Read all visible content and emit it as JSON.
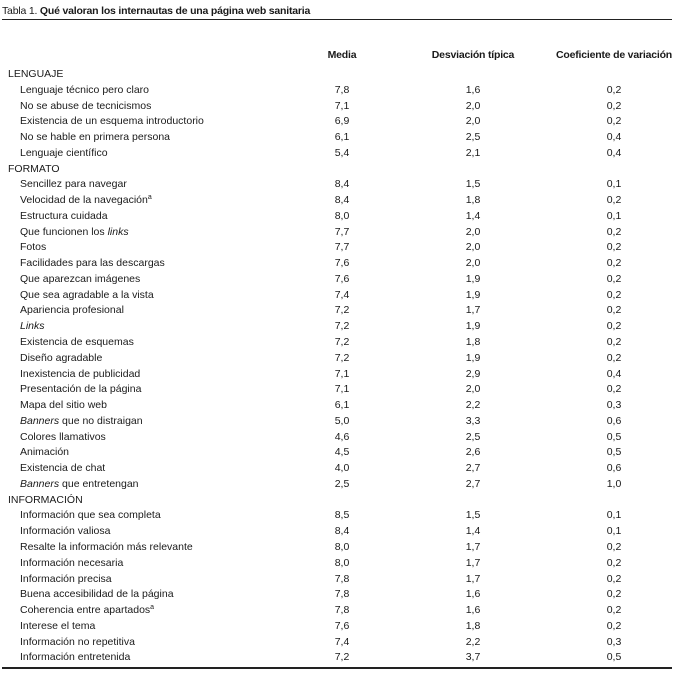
{
  "title": {
    "prefix": "Tabla 1.",
    "text": "Qué valoran los internautas de una página web sanitaria"
  },
  "columns": [
    "Media",
    "Desviación típica",
    "Coeficiente de variación"
  ],
  "sections": [
    {
      "name": "LENGUAJE",
      "rows": [
        {
          "label": "Lenguaje técnico pero claro",
          "values": [
            "7,8",
            "1,6",
            "0,2"
          ]
        },
        {
          "label": "No se abuse de tecnicismos",
          "values": [
            "7,1",
            "2,0",
            "0,2"
          ]
        },
        {
          "label": "Existencia de un esquema introductorio",
          "values": [
            "6,9",
            "2,0",
            "0,2"
          ]
        },
        {
          "label": "No se hable en primera persona",
          "values": [
            "6,1",
            "2,5",
            "0,4"
          ]
        },
        {
          "label": "Lenguaje científico",
          "values": [
            "5,4",
            "2,1",
            "0,4"
          ]
        }
      ]
    },
    {
      "name": "FORMATO",
      "rows": [
        {
          "label": "Sencillez para navegar",
          "values": [
            "8,4",
            "1,5",
            "0,1"
          ]
        },
        {
          "label": "Velocidad de la navegación",
          "sup": "a",
          "values": [
            "8,4",
            "1,8",
            "0,2"
          ]
        },
        {
          "label": "Estructura cuidada",
          "values": [
            "8,0",
            "1,4",
            "0,1"
          ]
        },
        {
          "label": "Que funcionen los ",
          "italic": "links",
          "values": [
            "7,7",
            "2,0",
            "0,2"
          ]
        },
        {
          "label": "Fotos",
          "values": [
            "7,7",
            "2,0",
            "0,2"
          ]
        },
        {
          "label": "Facilidades para las descargas",
          "values": [
            "7,6",
            "2,0",
            "0,2"
          ]
        },
        {
          "label": "Que aparezcan imágenes",
          "values": [
            "7,6",
            "1,9",
            "0,2"
          ]
        },
        {
          "label": "Que sea agradable a la vista",
          "values": [
            "7,4",
            "1,9",
            "0,2"
          ]
        },
        {
          "label": "Apariencia profesional",
          "values": [
            "7,2",
            "1,7",
            "0,2"
          ]
        },
        {
          "italic_first": "Links",
          "label": "",
          "values": [
            "7,2",
            "1,9",
            "0,2"
          ]
        },
        {
          "label": "Existencia de esquemas",
          "values": [
            "7,2",
            "1,8",
            "0,2"
          ]
        },
        {
          "label": "Diseño agradable",
          "values": [
            "7,2",
            "1,9",
            "0,2"
          ]
        },
        {
          "label": "Inexistencia de publicidad",
          "values": [
            "7,1",
            "2,9",
            "0,4"
          ]
        },
        {
          "label": "Presentación de la página",
          "values": [
            "7,1",
            "2,0",
            "0,2"
          ]
        },
        {
          "label": "Mapa del sitio web",
          "values": [
            "6,1",
            "2,2",
            "0,3"
          ]
        },
        {
          "italic_first": "Banners",
          "label": " que no distraigan",
          "values": [
            "5,0",
            "3,3",
            "0,6"
          ]
        },
        {
          "label": "Colores llamativos",
          "values": [
            "4,6",
            "2,5",
            "0,5"
          ]
        },
        {
          "label": "Animación",
          "values": [
            "4,5",
            "2,6",
            "0,5"
          ]
        },
        {
          "label": "Existencia de chat",
          "values": [
            "4,0",
            "2,7",
            "0,6"
          ]
        },
        {
          "italic_first": "Banners",
          "label": " que entretengan",
          "values": [
            "2,5",
            "2,7",
            "1,0"
          ]
        }
      ]
    },
    {
      "name": "INFORMACIÓN",
      "rows": [
        {
          "label": "Información que sea completa",
          "values": [
            "8,5",
            "1,5",
            "0,1"
          ]
        },
        {
          "label": "Información valiosa",
          "values": [
            "8,4",
            "1,4",
            "0,1"
          ]
        },
        {
          "label": "Resalte la información más relevante",
          "values": [
            "8,0",
            "1,7",
            "0,2"
          ]
        },
        {
          "label": "Información necesaria",
          "values": [
            "8,0",
            "1,7",
            "0,2"
          ]
        },
        {
          "label": "Información precisa",
          "values": [
            "7,8",
            "1,7",
            "0,2"
          ]
        },
        {
          "label": "Buena accesibilidad de la página",
          "values": [
            "7,8",
            "1,6",
            "0,2"
          ]
        },
        {
          "label": "Coherencia entre apartados",
          "sup": "a",
          "values": [
            "7,8",
            "1,6",
            "0,2"
          ]
        },
        {
          "label": "Interese el tema",
          "values": [
            "7,6",
            "1,8",
            "0,2"
          ]
        },
        {
          "label": "Información no repetitiva",
          "values": [
            "7,4",
            "2,2",
            "0,3"
          ]
        },
        {
          "label": "Información entretenida",
          "values": [
            "7,2",
            "3,7",
            "0,5"
          ]
        }
      ]
    }
  ]
}
